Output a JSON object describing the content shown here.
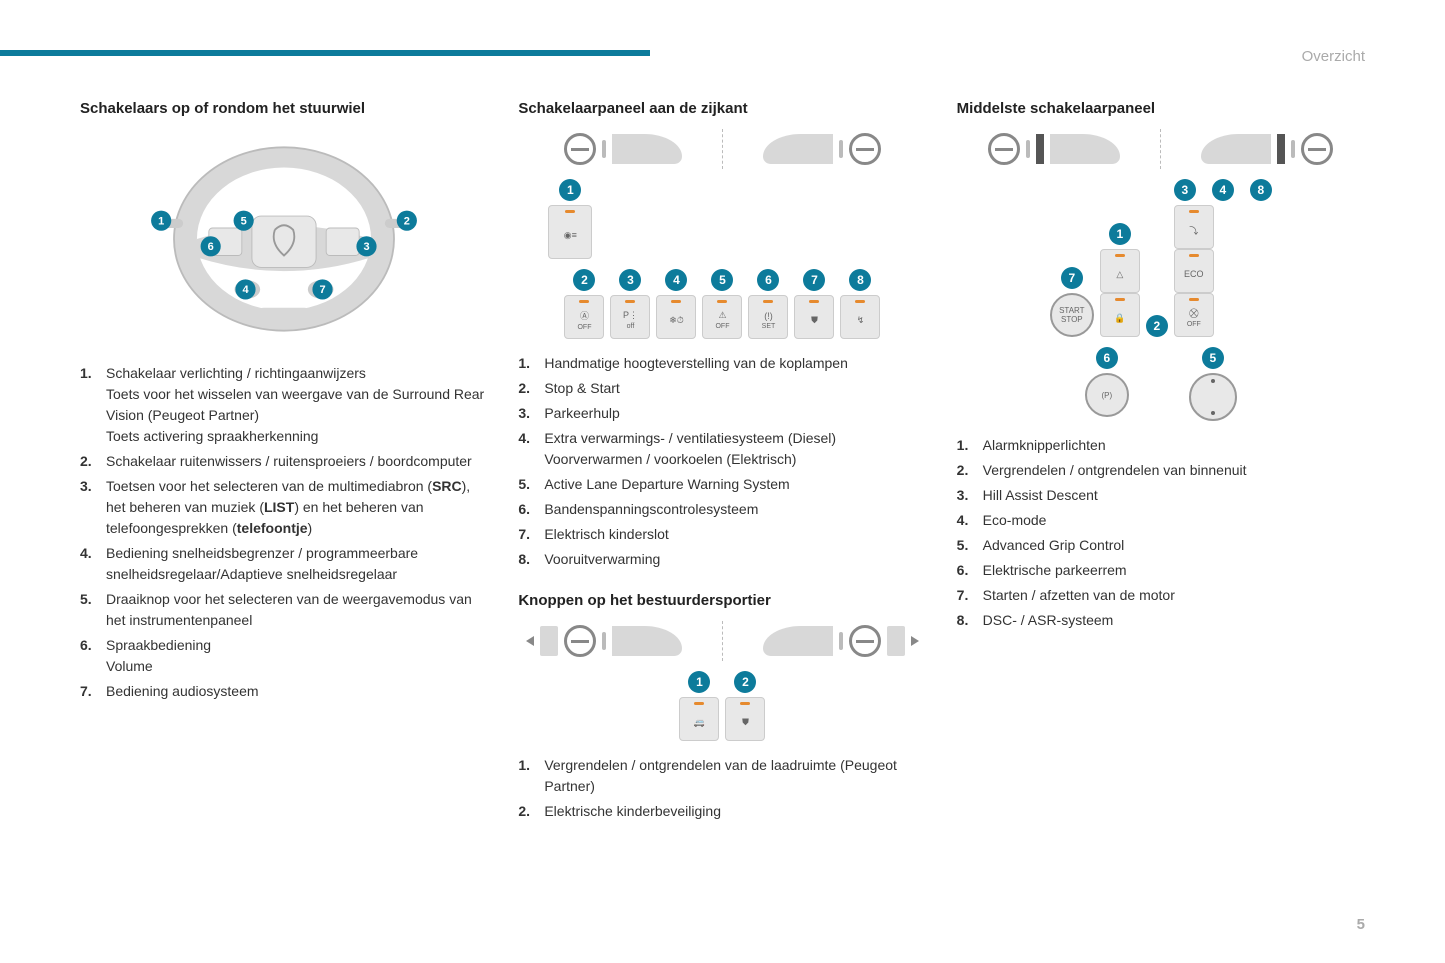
{
  "accent_color": "#0d7b9b",
  "breadcrumb": "Overzicht",
  "page_number": "5",
  "col1": {
    "heading": "Schakelaars op of rondom het stuurwiel",
    "wheel_badges": [
      "1",
      "2",
      "3",
      "4",
      "5",
      "6",
      "7"
    ],
    "items": [
      {
        "lines": [
          "Schakelaar verlichting / richtingaanwijzers",
          "Toets voor het wisselen van weergave van de Surround Rear Vision (Peugeot Partner)",
          "Toets activering spraakherkenning"
        ]
      },
      {
        "lines": [
          "Schakelaar ruitenwissers / ruitensproeiers / boordcomputer"
        ]
      },
      {
        "html": "Toetsen voor het selecteren van de multimediabron (<b>SRC</b>), het beheren van muziek (<b>LIST</b>) en het beheren van telefoongesprekken (<b>telefoontje</b>)"
      },
      {
        "lines": [
          "Bediening snelheidsbegrenzer / programmeerbare snelheidsregelaar/Adaptieve snelheidsregelaar"
        ]
      },
      {
        "lines": [
          "Draaiknop voor het selecteren van de weergavemodus van het instrumentenpaneel"
        ]
      },
      {
        "lines": [
          "Spraakbediening",
          "Volume"
        ]
      },
      {
        "lines": [
          "Bediening audiosysteem"
        ]
      }
    ]
  },
  "col2a": {
    "heading": "Schakelaarpaneel aan de zijkant",
    "buttons": [
      {
        "n": "1",
        "icon": "headlamp",
        "type": "tall"
      },
      {
        "n": "2",
        "icon": "A-OFF",
        "sub": "OFF"
      },
      {
        "n": "3",
        "icon": "P-OFF",
        "sub": "off"
      },
      {
        "n": "4",
        "icon": "heat-clock"
      },
      {
        "n": "5",
        "icon": "lane",
        "sub": "OFF"
      },
      {
        "n": "6",
        "icon": "tpms",
        "sub": "SET"
      },
      {
        "n": "7",
        "icon": "childlock"
      },
      {
        "n": "8",
        "icon": "defrost"
      }
    ],
    "items": [
      "Handmatige hoogteverstelling van de koplampen",
      "Stop & Start",
      "Parkeerhulp",
      "Extra verwarmings- / ventilatiesysteem (Diesel) Voorverwarmen / voorkoelen (Elektrisch)",
      "Active Lane Departure Warning System",
      "Bandenspanningscontrolesysteem",
      "Elektrisch kinderslot",
      "Vooruitverwarming"
    ]
  },
  "col2b": {
    "heading": "Knoppen op het bestuurdersportier",
    "buttons": [
      {
        "n": "1",
        "icon": "van-lock"
      },
      {
        "n": "2",
        "icon": "childlock"
      }
    ],
    "items": [
      "Vergrendelen / ontgrendelen van de laadruimte (Peugeot Partner)",
      "Elektrische kinderbeveiliging"
    ]
  },
  "col3": {
    "heading": "Middelste schakelaarpaneel",
    "buttons_top": [
      {
        "n": "7",
        "type": "round",
        "label": "START\nSTOP"
      },
      {
        "n": "1",
        "icon": "hazard"
      },
      {
        "n": "",
        "icon": "lock-red",
        "plain": true
      },
      {
        "n": "2",
        "spacer": true
      },
      {
        "n": "3",
        "icon": "hill"
      },
      {
        "n": "4",
        "icon": "ECO",
        "text": "ECO"
      },
      {
        "n": "8",
        "icon": "esp",
        "sub": "OFF"
      }
    ],
    "buttons_bottom": [
      {
        "n": "6",
        "type": "round-p",
        "label": "(P)"
      },
      {
        "n": "5",
        "type": "dial"
      }
    ],
    "items": [
      "Alarmknipperlichten",
      "Vergrendelen / ontgrendelen van binnenuit",
      "Hill Assist Descent",
      "Eco-mode",
      "Advanced Grip Control",
      "Elektrische parkeerrem",
      "Starten / afzetten van de motor",
      "DSC- / ASR-systeem"
    ]
  }
}
